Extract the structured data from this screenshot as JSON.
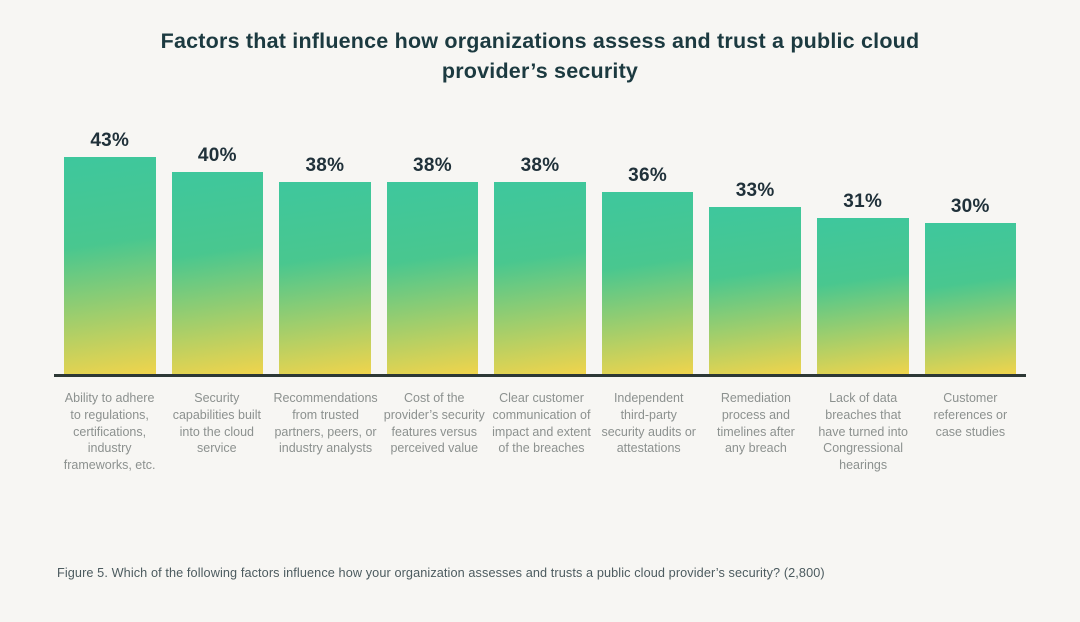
{
  "chart_data": {
    "type": "bar",
    "title": "Factors that influence how organizations assess and trust a public cloud provider’s security",
    "categories": [
      "Ability to adhere to regulations, certifications, industry frameworks, etc.",
      "Security capabilities built into the cloud service",
      "Recommendations from trusted partners, peers, or industry analysts",
      "Cost of the provider’s security features versus perceived value",
      "Clear customer communication of impact and extent of the breaches",
      "Independent third-party security audits or attestations",
      "Remediation process and timelines after any breach",
      "Lack of data breaches that have turned into Congressional hearings",
      "Customer references or case studies"
    ],
    "values": [
      43,
      40,
      38,
      38,
      38,
      36,
      33,
      31,
      30
    ],
    "unit": "%",
    "ylim": [
      0,
      45
    ],
    "grid": false,
    "legend": "none",
    "value_labels_position": "above-bars",
    "xlabel": "",
    "ylabel": ""
  },
  "caption": "Figure 5. Which of the following factors influence how your organization assesses and trusts a public cloud provider’s security? (2,800)",
  "colors": {
    "background": "#f7f6f3",
    "title": "#1c3a40",
    "value_label": "#20313a",
    "category_label": "#8c918f",
    "caption": "#4c5b5f",
    "baseline": "#2d3835",
    "bar_gradient_top": "#3ec79d",
    "bar_gradient_mid": "#49c78f",
    "bar_gradient_bottom": "#f0d44c"
  }
}
